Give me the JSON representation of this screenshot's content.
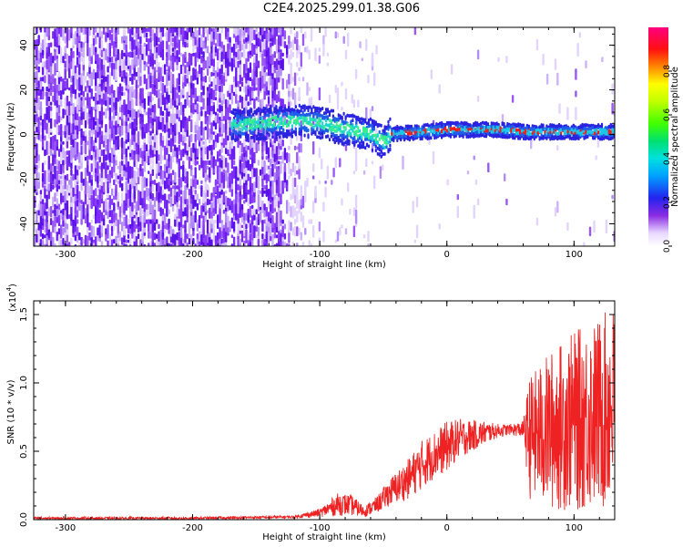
{
  "title": "C2E4.2025.299.01.38.G06",
  "colors": {
    "noise": "#6a1cf0",
    "signal_low": "#2a23e0",
    "signal_mid": "#19d6d0",
    "signal_peak": "#f11b1b",
    "snr_line": "#ee2222"
  },
  "chart_data": [
    {
      "type": "heatmap",
      "panel": "spectrogram",
      "xlabel": "Height of straight line (km)",
      "ylabel": "Frequency (Hz)",
      "xlim": [
        -325,
        132
      ],
      "ylim": [
        -50,
        48
      ],
      "xticks": [
        -300,
        -200,
        -100,
        0,
        100
      ],
      "xtick_labels": [
        "-300",
        "-200",
        "-100",
        "0",
        "100"
      ],
      "yticks": [
        -40,
        -20,
        0,
        20,
        40
      ],
      "ytick_labels": [
        "-40",
        "-20",
        "0",
        "20",
        "40"
      ],
      "signal_track": {
        "x": [
          -165,
          -140,
          -120,
          -100,
          -80,
          -60,
          -50,
          -45,
          -20,
          0,
          20,
          40,
          60,
          80,
          100,
          120,
          132
        ],
        "frequency_hz": [
          4,
          5,
          6,
          5,
          2,
          0,
          -4,
          0,
          1,
          2,
          2,
          2,
          1,
          1,
          1,
          1,
          1
        ]
      },
      "noise_region_x": [
        -325,
        -120
      ],
      "colorbar": {
        "label": "Normalized spectral amplitude",
        "ticks": [
          0.0,
          0.2,
          0.4,
          0.6,
          0.8
        ],
        "tick_labels": [
          "0.0",
          "0.2",
          "0.4",
          "0.6",
          "0.8"
        ],
        "range": [
          0,
          1
        ]
      }
    },
    {
      "type": "line",
      "panel": "snr",
      "xlabel": "Height of straight line (km)",
      "ylabel": "SNR (10 * v/v)",
      "scale_label": "(x10",
      "scale_exponent": "4",
      "xlim": [
        -325,
        132
      ],
      "ylim": [
        0,
        1.6
      ],
      "xticks": [
        -300,
        -200,
        -100,
        0,
        100
      ],
      "xtick_labels": [
        "-300",
        "-200",
        "-100",
        "0",
        "100"
      ],
      "yticks": [
        0.0,
        0.5,
        1.0,
        1.5
      ],
      "ytick_labels": [
        "0.0",
        "0.5",
        "1.0",
        "1.5"
      ],
      "envelope": {
        "x": [
          -325,
          -200,
          -120,
          -100,
          -85,
          -75,
          -65,
          -55,
          -45,
          -30,
          -20,
          -10,
          0,
          10,
          20,
          30,
          40,
          50,
          60,
          65,
          70,
          80,
          90,
          100,
          110,
          120,
          132
        ],
        "baseline": [
          0.0,
          0.0,
          0.01,
          0.02,
          0.03,
          0.03,
          0.02,
          0.05,
          0.1,
          0.15,
          0.22,
          0.3,
          0.35,
          0.45,
          0.5,
          0.55,
          0.6,
          0.62,
          0.6,
          0.15,
          0.1,
          0.05,
          0.05,
          0.05,
          0.05,
          0.05,
          0.05
        ],
        "peak": [
          0.02,
          0.02,
          0.03,
          0.08,
          0.2,
          0.18,
          0.1,
          0.17,
          0.3,
          0.45,
          0.58,
          0.65,
          0.72,
          0.74,
          0.73,
          0.72,
          0.7,
          0.7,
          0.72,
          1.05,
          1.1,
          1.22,
          1.3,
          1.38,
          1.42,
          1.48,
          1.58
        ]
      }
    }
  ]
}
